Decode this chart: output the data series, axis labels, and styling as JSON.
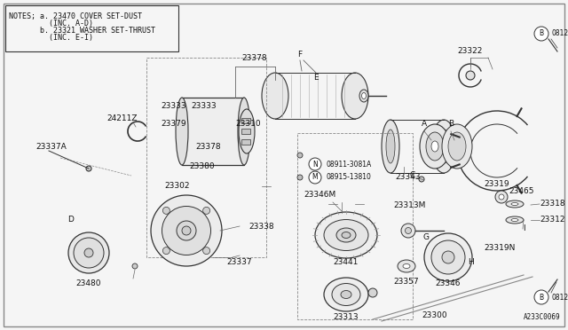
{
  "bg_color": "#f5f5f5",
  "border_color": "#666666",
  "line_color": "#333333",
  "text_color": "#111111",
  "notes_line1": "NOTES; a. 23470 COVER SET-DUST",
  "notes_line2": "         (INC. A-D)",
  "notes_line3": "       b. 23321 WASHER SET-THRUST",
  "notes_line4": "         (INC. E-I)",
  "diagram_code": "A233C0069",
  "font_size_label": 6.5,
  "font_size_notes": 6.0
}
